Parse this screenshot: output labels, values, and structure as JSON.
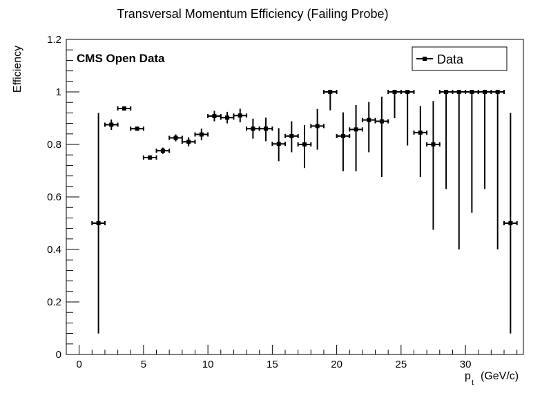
{
  "chart_data": {
    "type": "scatter",
    "title": "Transversal Momentum Efficiency (Failing Probe)",
    "annotation": "CMS Open Data",
    "xlabel_main": "p",
    "xlabel_sub": "t",
    "xlabel_unit": "(GeV/c)",
    "ylabel": "Efficiency",
    "xlim": [
      -1,
      34.5
    ],
    "ylim": [
      0,
      1.2
    ],
    "x_major_ticks": [
      0,
      5,
      10,
      15,
      20,
      25,
      30
    ],
    "y_major_ticks": [
      0,
      0.2,
      0.4,
      0.6,
      0.8,
      1,
      1.2
    ],
    "y_tick_labels": [
      "0",
      "0.2",
      "0.4",
      "0.6",
      "0.8",
      "1",
      "1.2"
    ],
    "grid": false,
    "legend_position": "top-right",
    "series": [
      {
        "name": "Data",
        "x_err": 0.5,
        "points": [
          {
            "x": 1.5,
            "y": 0.5,
            "lo": 0.08,
            "hi": 0.92
          },
          {
            "x": 2.5,
            "y": 0.875,
            "lo": 0.855,
            "hi": 0.895
          },
          {
            "x": 3.5,
            "y": 0.937,
            "lo": 0.933,
            "hi": 0.941
          },
          {
            "x": 4.5,
            "y": 0.86,
            "lo": 0.855,
            "hi": 0.865
          },
          {
            "x": 5.5,
            "y": 0.75,
            "lo": 0.742,
            "hi": 0.758
          },
          {
            "x": 6.5,
            "y": 0.776,
            "lo": 0.764,
            "hi": 0.788
          },
          {
            "x": 7.5,
            "y": 0.825,
            "lo": 0.812,
            "hi": 0.838
          },
          {
            "x": 8.5,
            "y": 0.81,
            "lo": 0.793,
            "hi": 0.827
          },
          {
            "x": 9.5,
            "y": 0.838,
            "lo": 0.816,
            "hi": 0.86
          },
          {
            "x": 10.5,
            "y": 0.908,
            "lo": 0.888,
            "hi": 0.928
          },
          {
            "x": 11.5,
            "y": 0.902,
            "lo": 0.88,
            "hi": 0.924
          },
          {
            "x": 12.5,
            "y": 0.91,
            "lo": 0.884,
            "hi": 0.936
          },
          {
            "x": 13.5,
            "y": 0.86,
            "lo": 0.822,
            "hi": 0.898
          },
          {
            "x": 14.5,
            "y": 0.86,
            "lo": 0.812,
            "hi": 0.902
          },
          {
            "x": 15.5,
            "y": 0.802,
            "lo": 0.736,
            "hi": 0.862
          },
          {
            "x": 16.5,
            "y": 0.832,
            "lo": 0.77,
            "hi": 0.888
          },
          {
            "x": 17.5,
            "y": 0.8,
            "lo": 0.71,
            "hi": 0.874
          },
          {
            "x": 18.5,
            "y": 0.87,
            "lo": 0.78,
            "hi": 0.935
          },
          {
            "x": 19.5,
            "y": 1.0,
            "lo": 0.93,
            "hi": 1.0
          },
          {
            "x": 20.5,
            "y": 0.832,
            "lo": 0.698,
            "hi": 0.922
          },
          {
            "x": 21.5,
            "y": 0.857,
            "lo": 0.698,
            "hi": 0.95
          },
          {
            "x": 22.5,
            "y": 0.893,
            "lo": 0.77,
            "hi": 0.962
          },
          {
            "x": 23.5,
            "y": 0.888,
            "lo": 0.676,
            "hi": 0.982
          },
          {
            "x": 24.5,
            "y": 1.0,
            "lo": 0.9,
            "hi": 1.0
          },
          {
            "x": 25.5,
            "y": 1.0,
            "lo": 0.796,
            "hi": 1.0
          },
          {
            "x": 26.5,
            "y": 0.845,
            "lo": 0.676,
            "hi": 0.946
          },
          {
            "x": 27.5,
            "y": 0.8,
            "lo": 0.475,
            "hi": 0.965
          },
          {
            "x": 28.5,
            "y": 1.0,
            "lo": 0.63,
            "hi": 1.0
          },
          {
            "x": 29.5,
            "y": 1.0,
            "lo": 0.4,
            "hi": 1.0
          },
          {
            "x": 30.5,
            "y": 1.0,
            "lo": 0.54,
            "hi": 1.0
          },
          {
            "x": 31.5,
            "y": 1.0,
            "lo": 0.63,
            "hi": 1.0
          },
          {
            "x": 32.5,
            "y": 1.0,
            "lo": 0.4,
            "hi": 1.0
          },
          {
            "x": 33.5,
            "y": 0.5,
            "lo": 0.08,
            "hi": 0.92
          }
        ]
      }
    ]
  }
}
